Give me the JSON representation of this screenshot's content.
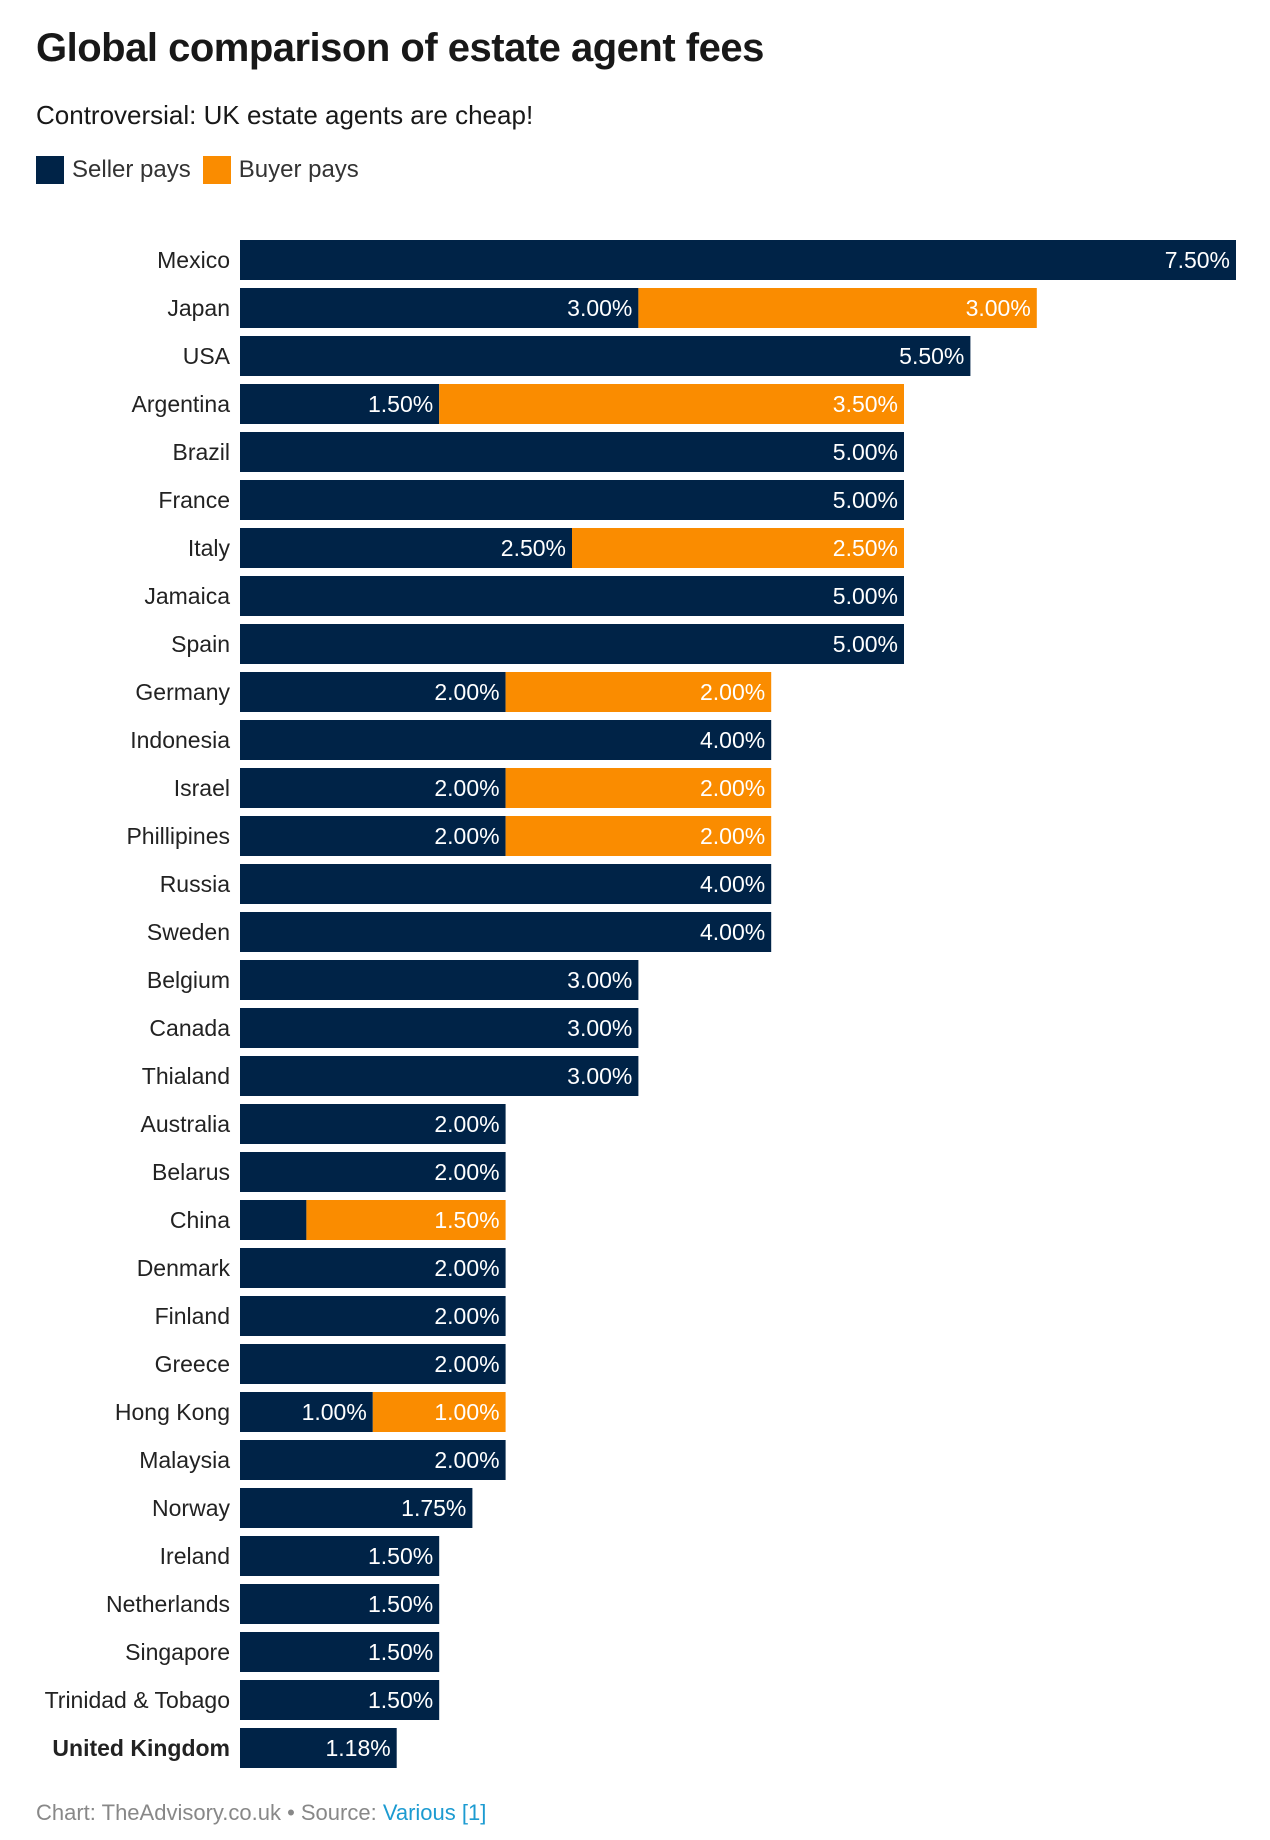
{
  "chart_data": {
    "type": "bar",
    "orientation": "horizontal",
    "stacked": true,
    "title": "Global comparison of estate agent fees",
    "subtitle": "Controversial: UK estate agents are cheap!",
    "xlabel": "",
    "ylabel": "",
    "xlim": [
      0,
      7.5
    ],
    "grid": false,
    "legend_position": "top-left",
    "categories": [
      "Mexico",
      "Japan",
      "USA",
      "Argentina",
      "Brazil",
      "France",
      "Italy",
      "Jamaica",
      "Spain",
      "Germany",
      "Indonesia",
      "Israel",
      "Phillipines",
      "Russia",
      "Sweden",
      "Belgium",
      "Canada",
      "Thialand",
      "Australia",
      "Belarus",
      "China",
      "Denmark",
      "Finland",
      "Greece",
      "Hong Kong",
      "Malaysia",
      "Norway",
      "Ireland",
      "Netherlands",
      "Singapore",
      "Trinidad & Tobago",
      "United Kingdom"
    ],
    "highlight_category": "United Kingdom",
    "series": [
      {
        "name": "Seller pays",
        "color": "#002347",
        "values": [
          7.5,
          3.0,
          5.5,
          1.5,
          5.0,
          5.0,
          2.5,
          5.0,
          5.0,
          2.0,
          4.0,
          2.0,
          2.0,
          4.0,
          4.0,
          3.0,
          3.0,
          3.0,
          2.0,
          2.0,
          0.5,
          2.0,
          2.0,
          2.0,
          1.0,
          2.0,
          1.75,
          1.5,
          1.5,
          1.5,
          1.5,
          1.18
        ],
        "labels": [
          "7.50%",
          "3.00%",
          "5.50%",
          "1.50%",
          "5.00%",
          "5.00%",
          "2.50%",
          "5.00%",
          "5.00%",
          "2.00%",
          "4.00%",
          "2.00%",
          "2.00%",
          "4.00%",
          "4.00%",
          "3.00%",
          "3.00%",
          "3.00%",
          "2.00%",
          "2.00%",
          "",
          "2.00%",
          "2.00%",
          "2.00%",
          "1.00%",
          "2.00%",
          "1.75%",
          "1.50%",
          "1.50%",
          "1.50%",
          "1.50%",
          "1.18%"
        ]
      },
      {
        "name": "Buyer pays",
        "color": "#fa8c00",
        "values": [
          0,
          3.0,
          0,
          3.5,
          0,
          0,
          2.5,
          0,
          0,
          2.0,
          0,
          2.0,
          2.0,
          0,
          0,
          0,
          0,
          0,
          0,
          0,
          1.5,
          0,
          0,
          0,
          1.0,
          0,
          0,
          0,
          0,
          0,
          0,
          0
        ],
        "labels": [
          "",
          "3.00%",
          "",
          "3.50%",
          "",
          "",
          "2.50%",
          "",
          "",
          "2.00%",
          "",
          "2.00%",
          "2.00%",
          "",
          "",
          "",
          "",
          "",
          "",
          "",
          "1.50%",
          "",
          "",
          "",
          "1.00%",
          "",
          "",
          "",
          "",
          "",
          "",
          ""
        ]
      }
    ]
  },
  "legend": {
    "seller": "Seller pays",
    "buyer": "Buyer pays"
  },
  "footer": {
    "prefix": "Chart: TheAdvisory.co.uk • Source: ",
    "link": "Various [1]"
  }
}
